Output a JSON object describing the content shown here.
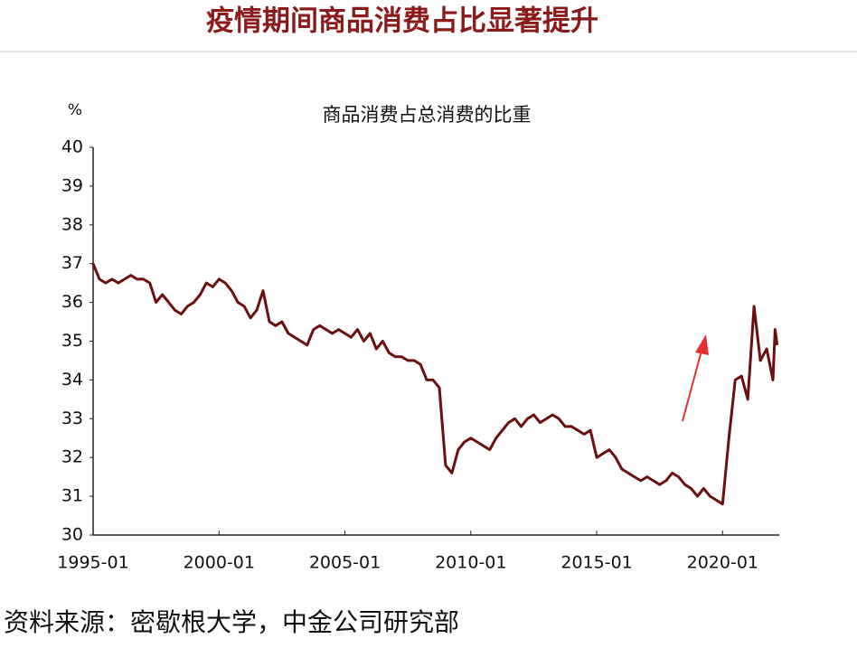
{
  "header": {
    "title": "疫情期间商品消费占比显著提升"
  },
  "chart_data": {
    "type": "line",
    "title": "商品消费占总消费的比重",
    "y_unit": "%",
    "x": [
      "1995-01",
      "1995-04",
      "1995-07",
      "1995-10",
      "1996-01",
      "1996-04",
      "1996-07",
      "1996-10",
      "1997-01",
      "1997-04",
      "1997-07",
      "1997-10",
      "1998-01",
      "1998-04",
      "1998-07",
      "1998-10",
      "1999-01",
      "1999-04",
      "1999-07",
      "1999-10",
      "2000-01",
      "2000-04",
      "2000-07",
      "2000-10",
      "2001-01",
      "2001-04",
      "2001-07",
      "2001-10",
      "2002-01",
      "2002-04",
      "2002-07",
      "2002-10",
      "2003-01",
      "2003-04",
      "2003-07",
      "2003-10",
      "2004-01",
      "2004-04",
      "2004-07",
      "2004-10",
      "2005-01",
      "2005-04",
      "2005-07",
      "2005-10",
      "2006-01",
      "2006-04",
      "2006-07",
      "2006-10",
      "2007-01",
      "2007-04",
      "2007-07",
      "2007-10",
      "2008-01",
      "2008-04",
      "2008-07",
      "2008-10",
      "2009-01",
      "2009-04",
      "2009-07",
      "2009-10",
      "2010-01",
      "2010-04",
      "2010-07",
      "2010-10",
      "2011-01",
      "2011-04",
      "2011-07",
      "2011-10",
      "2012-01",
      "2012-04",
      "2012-07",
      "2012-10",
      "2013-01",
      "2013-04",
      "2013-07",
      "2013-10",
      "2014-01",
      "2014-04",
      "2014-07",
      "2014-10",
      "2015-01",
      "2015-04",
      "2015-07",
      "2015-10",
      "2016-01",
      "2016-04",
      "2016-07",
      "2016-10",
      "2017-01",
      "2017-04",
      "2017-07",
      "2017-10",
      "2018-01",
      "2018-04",
      "2018-07",
      "2018-10",
      "2019-01",
      "2019-04",
      "2019-07",
      "2019-10",
      "2020-01",
      "2020-04",
      "2020-07",
      "2020-10",
      "2021-01",
      "2021-04",
      "2021-07",
      "2021-10",
      "2022-01",
      "2022-02",
      "2022-03"
    ],
    "series": [
      {
        "name": "商品消费占总消费的比重",
        "color": "#6b0f0f",
        "values": [
          37.0,
          36.6,
          36.5,
          36.6,
          36.5,
          36.6,
          36.7,
          36.6,
          36.6,
          36.5,
          36.0,
          36.2,
          36.0,
          35.8,
          35.7,
          35.9,
          36.0,
          36.2,
          36.5,
          36.4,
          36.6,
          36.5,
          36.3,
          36.0,
          35.9,
          35.6,
          35.8,
          36.3,
          35.5,
          35.4,
          35.5,
          35.2,
          35.1,
          35.0,
          34.9,
          35.3,
          35.4,
          35.3,
          35.2,
          35.3,
          35.2,
          35.1,
          35.3,
          35.0,
          35.2,
          34.8,
          35.0,
          34.7,
          34.6,
          34.6,
          34.5,
          34.5,
          34.4,
          34.0,
          34.0,
          33.8,
          31.8,
          31.6,
          32.2,
          32.4,
          32.5,
          32.4,
          32.3,
          32.2,
          32.5,
          32.7,
          32.9,
          33.0,
          32.8,
          33.0,
          33.1,
          32.9,
          33.0,
          33.1,
          33.0,
          32.8,
          32.8,
          32.7,
          32.6,
          32.7,
          32.0,
          32.1,
          32.2,
          32.0,
          31.7,
          31.6,
          31.5,
          31.4,
          31.5,
          31.4,
          31.3,
          31.4,
          31.6,
          31.5,
          31.3,
          31.2,
          31.0,
          31.2,
          31.0,
          30.9,
          30.8,
          32.5,
          34.0,
          34.1,
          33.5,
          35.9,
          34.5,
          34.8,
          34.0,
          35.3,
          34.9
        ]
      }
    ],
    "xlim": [
      "1995-01",
      "2022-04"
    ],
    "xticks": [
      "1995-01",
      "2000-01",
      "2005-01",
      "2010-01",
      "2015-01",
      "2020-01"
    ],
    "ylim": [
      30,
      40
    ],
    "yticks": [
      30,
      31,
      32,
      33,
      34,
      35,
      36,
      37,
      38,
      39,
      40
    ]
  },
  "footer": {
    "source": "资料来源：密歇根大学，中金公司研究部"
  }
}
